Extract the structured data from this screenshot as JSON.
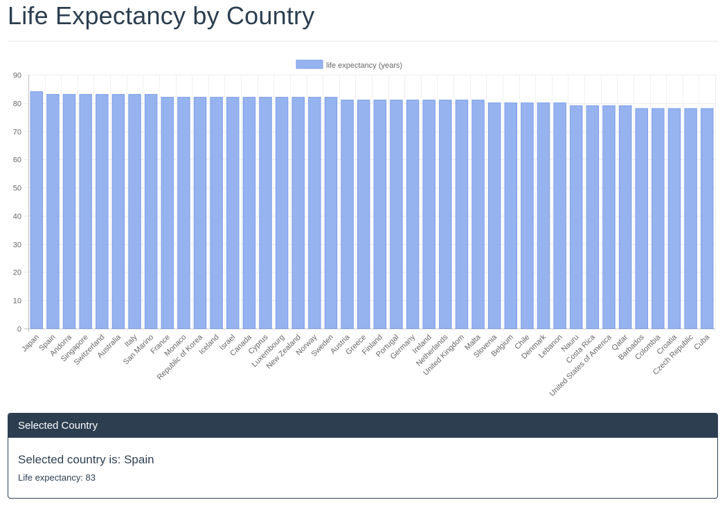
{
  "page": {
    "title": "Life Expectancy by Country"
  },
  "chart_data": {
    "type": "bar",
    "legend": {
      "label": "life expectancy (years)",
      "placement": "top-center"
    },
    "categories": [
      "Japan",
      "Spain",
      "Andorra",
      "Singapore",
      "Switzerland",
      "Australia",
      "Italy",
      "San Marino",
      "France",
      "Monaco",
      "Republic of Korea",
      "Iceland",
      "Israel",
      "Canada",
      "Cyprus",
      "Luxembourg",
      "New Zealand",
      "Norway",
      "Sweden",
      "Austria",
      "Greece",
      "Finland",
      "Portugal",
      "Germany",
      "Ireland",
      "Netherlands",
      "United Kingdom",
      "Malta",
      "Slovenia",
      "Belgium",
      "Chile",
      "Denmark",
      "Lebanon",
      "Nauru",
      "Costa Rica",
      "United States of America",
      "Qatar",
      "Barbados",
      "Colombia",
      "Croatia",
      "Czech Republic",
      "Cuba"
    ],
    "series": [
      {
        "name": "life expectancy (years)",
        "values": [
          84,
          83,
          83,
          83,
          83,
          83,
          83,
          83,
          82,
          82,
          82,
          82,
          82,
          82,
          82,
          82,
          82,
          82,
          82,
          81,
          81,
          81,
          81,
          81,
          81,
          81,
          81,
          81,
          80,
          80,
          80,
          80,
          80,
          79,
          79,
          79,
          79,
          78,
          78,
          78,
          78,
          78
        ]
      }
    ],
    "ylim": [
      0,
      90
    ],
    "yticks": [
      0,
      10,
      20,
      30,
      40,
      50,
      60,
      70,
      80,
      90
    ],
    "grid": true,
    "colors": {
      "bar_fill": "#97b3ef",
      "bar_stroke": "#7a9de8"
    }
  },
  "panel": {
    "heading": "Selected Country",
    "selected_text": "Selected country is: Spain",
    "expectancy_text": "Life expectancy: 83"
  }
}
